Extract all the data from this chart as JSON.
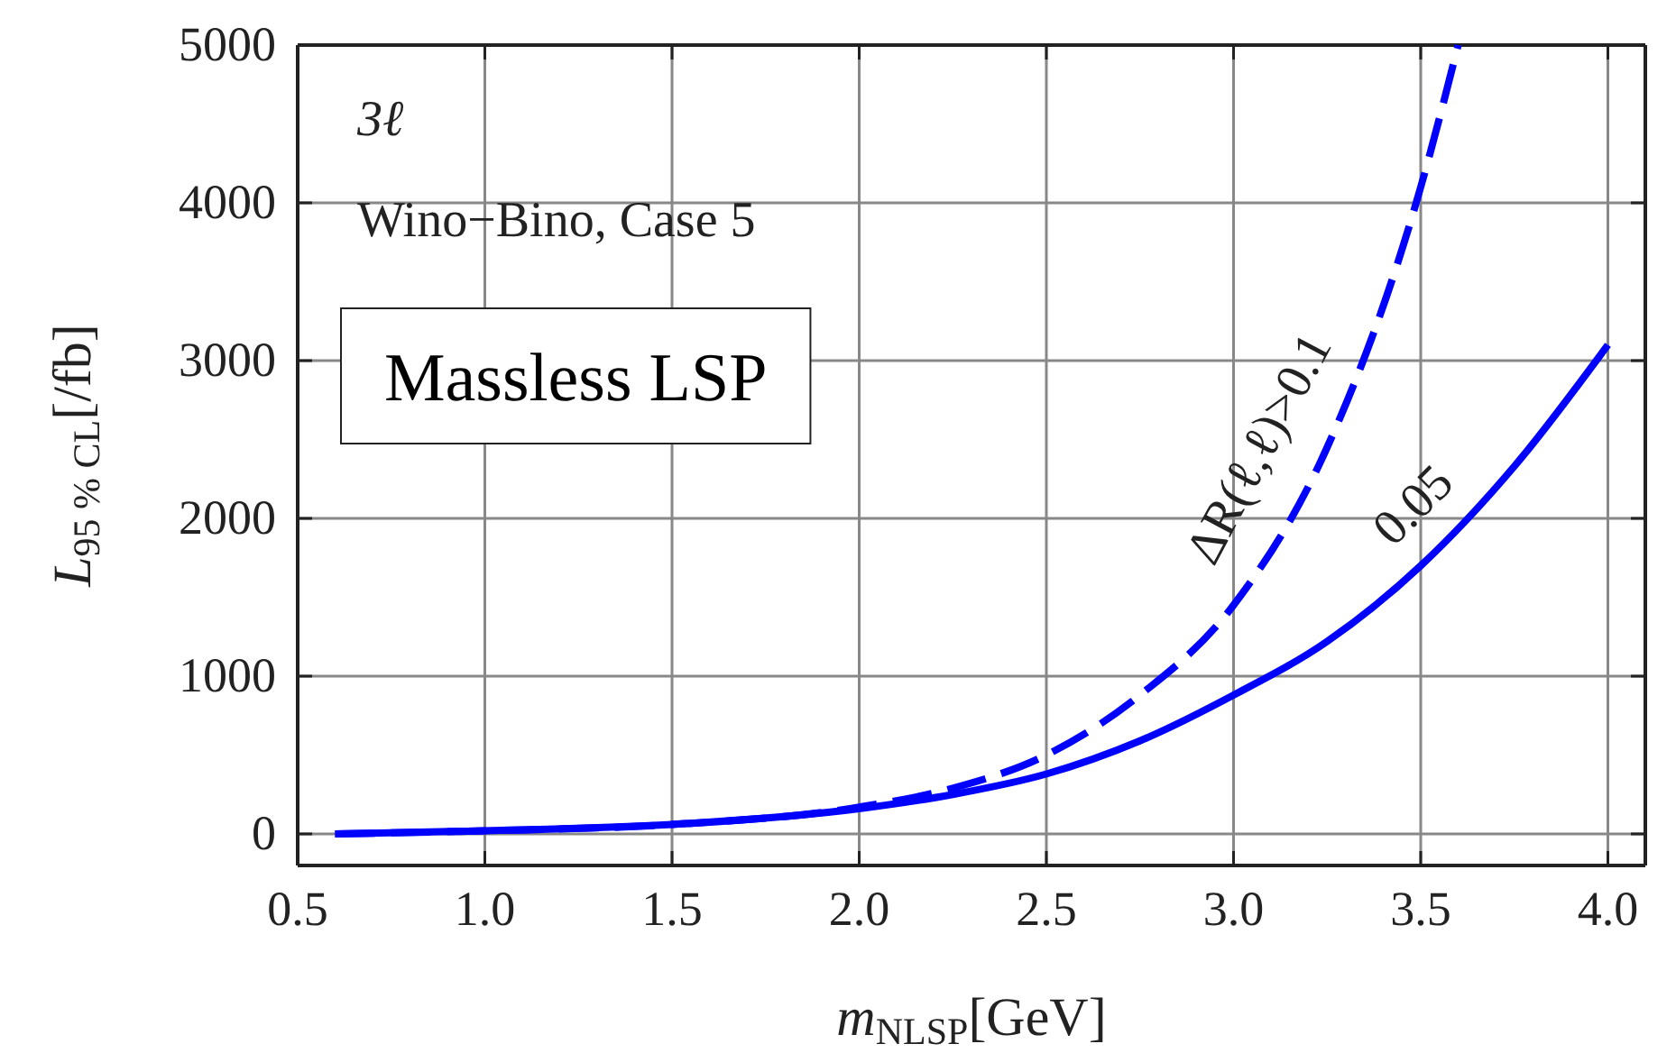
{
  "chart_data": {
    "type": "line",
    "xlabel": "m$_{NLSP}$[GeV]",
    "ylabel": "L$_{95 % CL}$[/fb]",
    "xlim": [
      0.5,
      4.1
    ],
    "ylim": [
      -200,
      5000
    ],
    "xticks": [
      {
        "value": 0.5,
        "label": "0.5"
      },
      {
        "value": 1,
        "label": "1.0"
      },
      {
        "value": 1.5,
        "label": "1.5"
      },
      {
        "value": 2,
        "label": "2.0"
      },
      {
        "value": 2.5,
        "label": "2.5"
      },
      {
        "value": 3,
        "label": "3.0"
      },
      {
        "value": 3.5,
        "label": "3.5"
      },
      {
        "value": 4,
        "label": "4.0"
      }
    ],
    "yticks": [
      0,
      1000,
      2000,
      3000,
      4000,
      5000
    ],
    "grid": true,
    "series": [
      {
        "color": "#0000ff",
        "line_style": "solid",
        "x": [
          0.6,
          1.0,
          1.5,
          2.0,
          2.25,
          2.5,
          2.75,
          3.0,
          3.25,
          3.5,
          3.75,
          4.0
        ],
        "values": [
          0,
          20,
          60,
          160,
          250,
          380,
          590,
          880,
          1220,
          1700,
          2330,
          3100
        ]
      },
      {
        "color": "#0000ff",
        "line_style": "dashed",
        "x": [
          0.6,
          1.0,
          1.5,
          2.0,
          2.25,
          2.5,
          2.75,
          3.0,
          3.25,
          3.5,
          3.6
        ],
        "values": [
          0,
          20,
          60,
          170,
          290,
          500,
          880,
          1450,
          2450,
          4100,
          5000
        ]
      }
    ],
    "annotations": [
      "3ℓ",
      "Wino−Bino, Case 5",
      "Massless LSP",
      "ΔR(ℓ,ℓ)>0.1",
      "0.05"
    ]
  }
}
